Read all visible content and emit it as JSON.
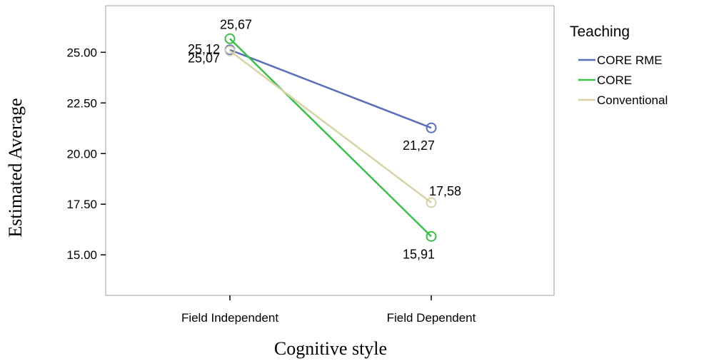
{
  "chart_data": {
    "type": "line",
    "title": "",
    "xlabel": "Cognitive style",
    "ylabel": "Estimated Average",
    "categories": [
      "Field Independent",
      "Field Dependent"
    ],
    "ylim": [
      13.0,
      27.3
    ],
    "yticks": [
      15.0,
      17.5,
      20.0,
      22.5,
      25.0
    ],
    "ytick_labels": [
      "15.00",
      "17.50",
      "20.00",
      "22.50",
      "25.00"
    ],
    "legend": {
      "title": "Teaching",
      "placement": "right"
    },
    "grid": false,
    "series": [
      {
        "name": "CORE RME",
        "color": "#5b6fb8",
        "values": [
          25.12,
          21.27
        ],
        "labels": [
          "25,12",
          "21,27"
        ]
      },
      {
        "name": "CORE",
        "color": "#3cbf4a",
        "values": [
          25.67,
          15.91
        ],
        "labels": [
          "25,67",
          "15,91"
        ]
      },
      {
        "name": "Conventional",
        "color": "#d8d3a6",
        "values": [
          25.07,
          17.58
        ],
        "labels": [
          "25,07",
          "17,58"
        ]
      }
    ]
  }
}
